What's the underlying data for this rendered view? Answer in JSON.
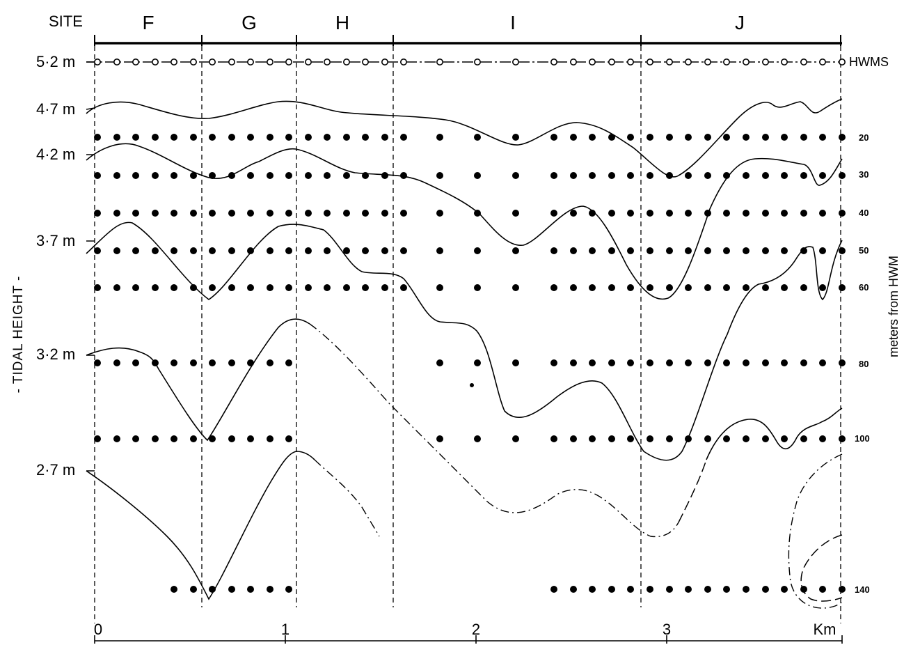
{
  "header": {
    "site_label": "SITE",
    "sites": [
      "F",
      "G",
      "H",
      "I",
      "J"
    ]
  },
  "left_axis": {
    "title": "- TIDAL HEIGHT -",
    "ticks": [
      "5·2 m",
      "4·7 m",
      "4·2 m",
      "3·7 m",
      "3·2 m",
      "2·7 m"
    ]
  },
  "right_axis": {
    "title": "meters from HWM",
    "hwms_label": "HWMS",
    "ticks": [
      "20",
      "30",
      "40",
      "50",
      "60",
      "80",
      "100",
      "140"
    ]
  },
  "bottom_axis": {
    "ticks": [
      "0",
      "1",
      "2",
      "3"
    ],
    "unit": "Km"
  },
  "colors": {
    "ink": "#000000",
    "paper": "#ffffff"
  }
}
